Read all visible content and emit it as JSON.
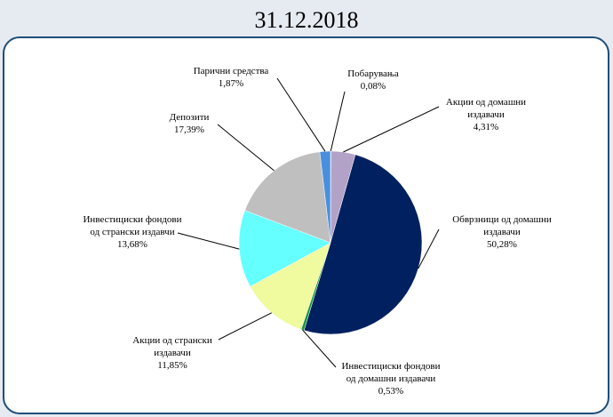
{
  "chart_data": {
    "type": "pie",
    "title": "31.12.2018",
    "categories": [
      "Побарувања",
      "Акции од домашни\nиздавачи",
      "Обврзници од домашни\nиздавачи",
      "Инвестициски фондови\nод домашни издавачи",
      "Акции од странски\nиздавачи",
      "Инвестициски фондови\nод странски издавчи",
      "Депозити",
      "Парични средства"
    ],
    "values": [
      0.08,
      4.31,
      50.28,
      0.53,
      11.85,
      13.68,
      17.39,
      1.87
    ],
    "value_labels": [
      "0,08%",
      "4,31%",
      "50,28%",
      "0,53%",
      "11,85%",
      "13,68%",
      "17,39%",
      "1,87%"
    ],
    "colors": [
      "#7f9fd0",
      "#b3a2c7",
      "#002060",
      "#1a9641",
      "#f0fa9e",
      "#66ffff",
      "#bfbfbf",
      "#4a8fde"
    ]
  }
}
